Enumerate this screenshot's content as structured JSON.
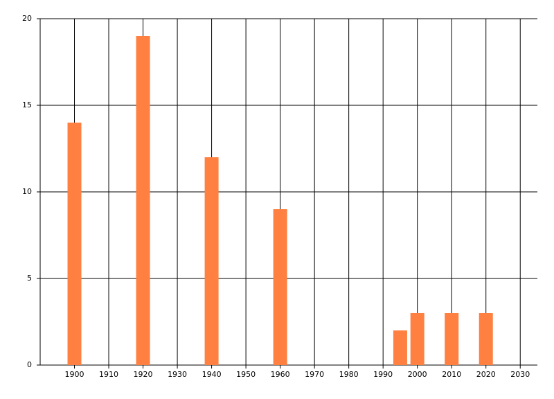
{
  "chart_data": {
    "type": "bar",
    "x": [
      1900,
      1920,
      1940,
      1960,
      1995,
      2000,
      2010,
      2020
    ],
    "values": [
      14,
      19,
      12,
      9,
      2,
      3,
      3,
      3
    ],
    "color": "#ff8040",
    "xlim": [
      1890,
      2035
    ],
    "xticks": [
      1900,
      1910,
      1920,
      1930,
      1940,
      1950,
      1960,
      1970,
      1980,
      1990,
      2000,
      2010,
      2020,
      2030
    ],
    "ylim": [
      0,
      20
    ],
    "yticks": [
      0,
      5,
      10,
      15,
      20
    ],
    "grid": true
  }
}
